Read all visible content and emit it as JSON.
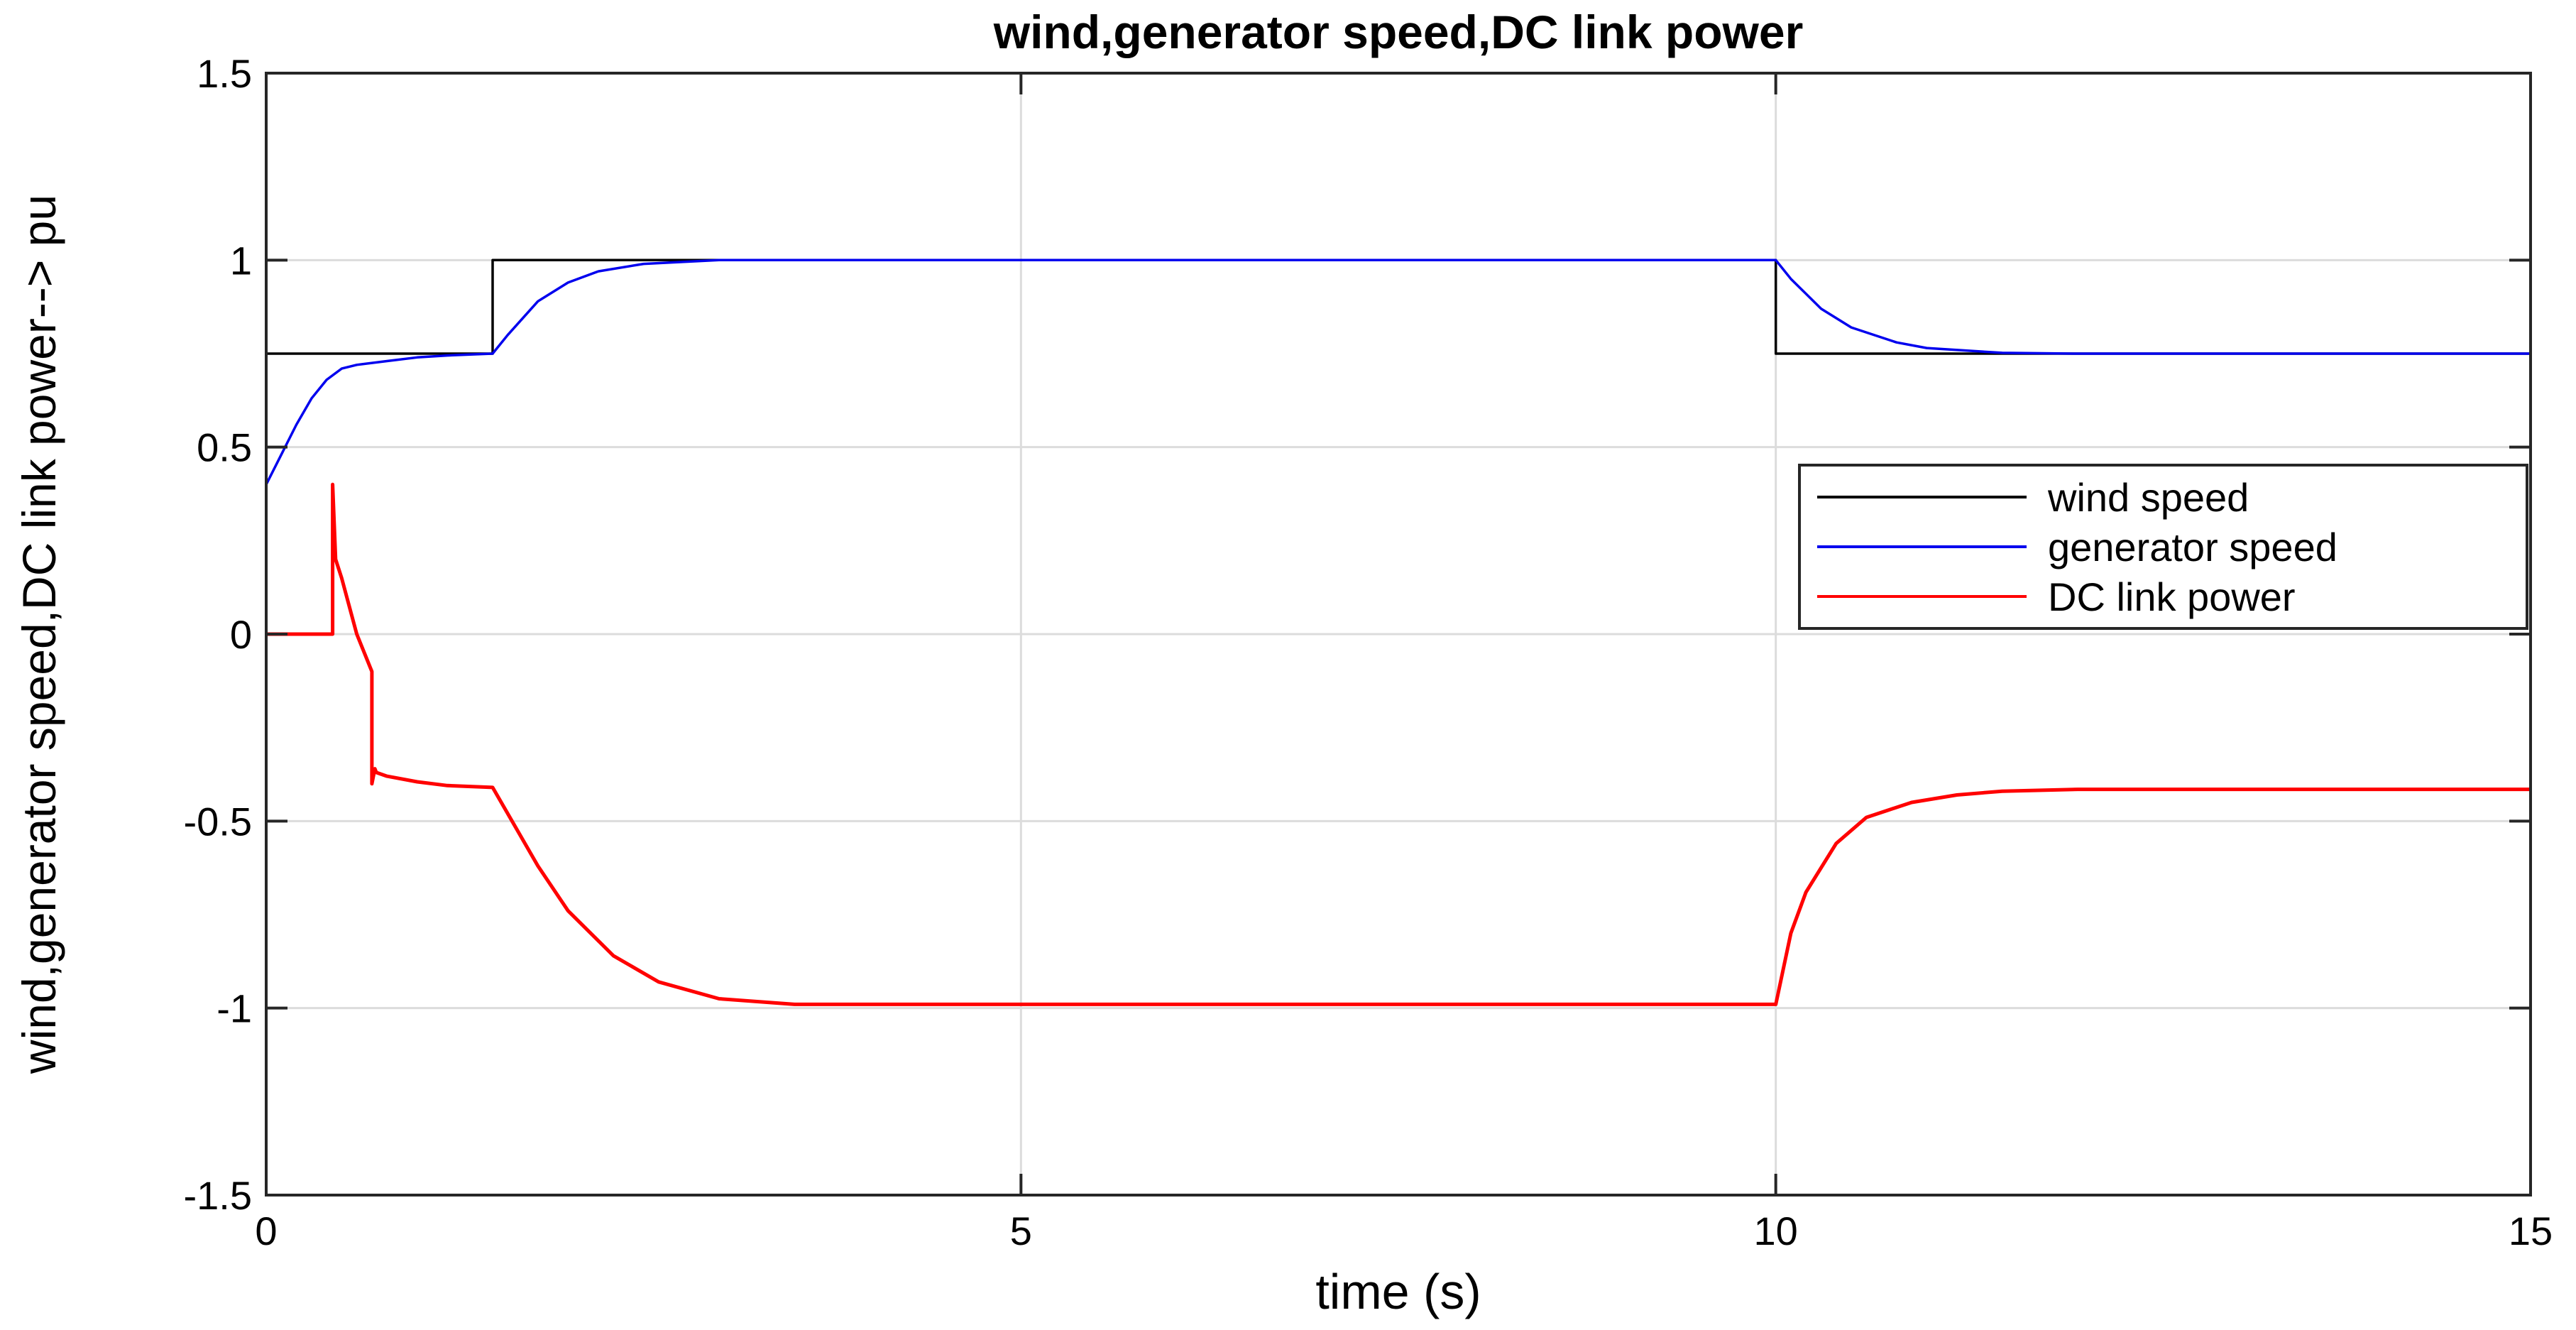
{
  "chart_data": {
    "type": "line",
    "title": "wind,generator speed,DC link power",
    "xlabel": "time (s)",
    "ylabel": "wind,generator speed,DC link power--> pu",
    "xlim": [
      0,
      15
    ],
    "ylim": [
      -1.5,
      1.5
    ],
    "xticks": [
      0,
      5,
      10,
      15
    ],
    "xtick_labels": [
      "0",
      "5",
      "10",
      "15"
    ],
    "yticks": [
      -1.5,
      -1,
      -0.5,
      0,
      0.5,
      1,
      1.5
    ],
    "ytick_labels": [
      "-1.5",
      "-1",
      "-0.5",
      "0",
      "0.5",
      "1",
      "1.5"
    ],
    "grid": true,
    "legend_position": "right",
    "series": [
      {
        "name": "wind speed",
        "color": "#000000",
        "x": [
          0,
          1.5,
          1.5,
          10,
          10,
          15
        ],
        "y": [
          0.75,
          0.75,
          1.0,
          1.0,
          0.75,
          0.75
        ]
      },
      {
        "name": "generator speed",
        "color": "#0000ee",
        "x": [
          0,
          0.1,
          0.2,
          0.3,
          0.4,
          0.5,
          0.6,
          0.8,
          1.0,
          1.2,
          1.5,
          1.6,
          1.8,
          2.0,
          2.2,
          2.5,
          3.0,
          5.0,
          10.0,
          10.1,
          10.3,
          10.5,
          10.8,
          11.0,
          11.5,
          12.0,
          15.0
        ],
        "y": [
          0.4,
          0.48,
          0.56,
          0.63,
          0.68,
          0.71,
          0.72,
          0.73,
          0.74,
          0.745,
          0.75,
          0.8,
          0.89,
          0.94,
          0.97,
          0.99,
          1.0,
          1.0,
          1.0,
          0.95,
          0.87,
          0.82,
          0.78,
          0.765,
          0.752,
          0.75,
          0.75
        ]
      },
      {
        "name": "DC link power",
        "color": "#ff0000",
        "x": [
          0,
          0.44,
          0.44,
          0.45,
          0.46,
          0.5,
          0.6,
          0.7,
          0.7,
          0.72,
          0.73,
          0.8,
          1.0,
          1.2,
          1.5,
          1.8,
          2.0,
          2.3,
          2.6,
          3.0,
          3.5,
          5.0,
          10.0,
          10.1,
          10.2,
          10.4,
          10.6,
          10.9,
          11.2,
          11.5,
          12.0,
          15.0
        ],
        "y": [
          0,
          0,
          0.4,
          0.3,
          0.2,
          0.15,
          0.0,
          -0.1,
          -0.4,
          -0.36,
          -0.37,
          -0.38,
          -0.395,
          -0.405,
          -0.41,
          -0.62,
          -0.74,
          -0.86,
          -0.93,
          -0.975,
          -0.99,
          -0.99,
          -0.99,
          -0.8,
          -0.69,
          -0.56,
          -0.49,
          -0.45,
          -0.43,
          -0.42,
          -0.415,
          -0.415
        ]
      }
    ]
  }
}
